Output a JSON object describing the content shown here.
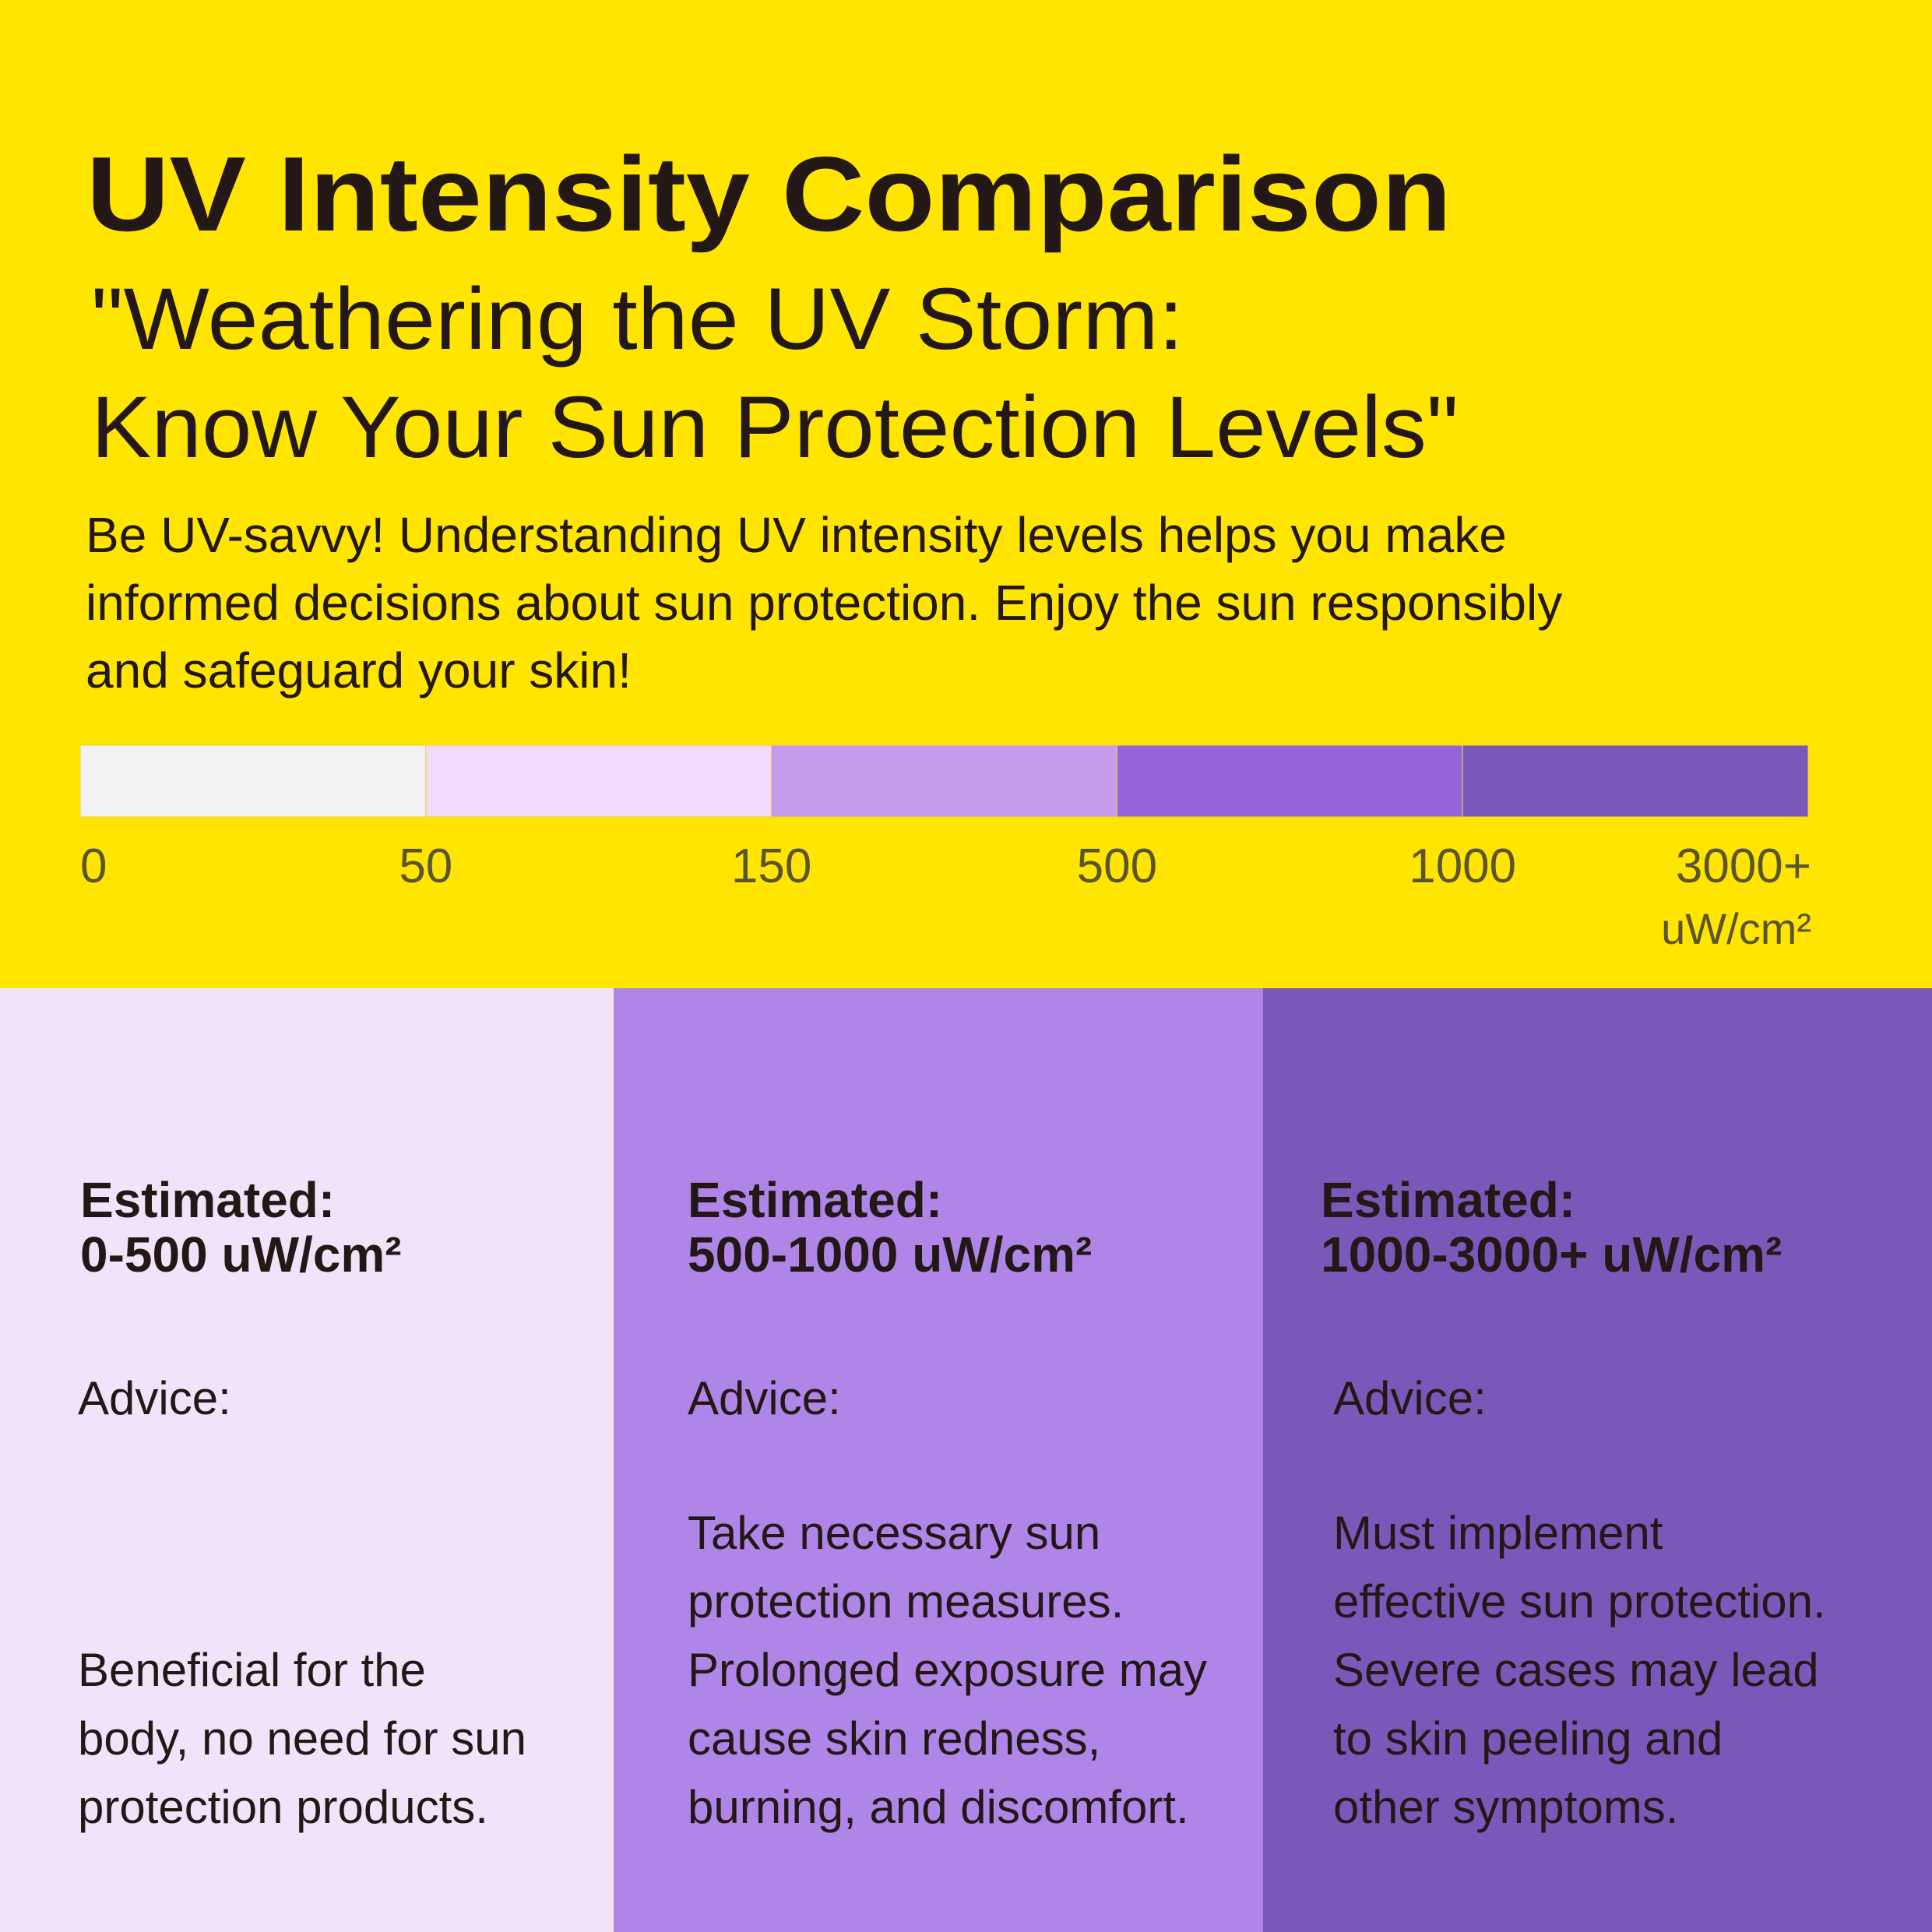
{
  "header": {
    "title": "UV Intensity Comparison",
    "subtitle_lines": [
      "\"Weathering the UV Storm:",
      "Know Your Sun Protection Levels\""
    ],
    "description_lines": [
      "Be UV-savvy! Understanding UV intensity levels helps you make",
      "informed decisions about sun protection. Enjoy the sun responsibly",
      "and safeguard your skin!"
    ]
  },
  "scale": {
    "colors": [
      "#f2f2f4",
      "#f1dafb",
      "#c59beb",
      "#9663d8",
      "#7a58ba"
    ],
    "labels": [
      "0",
      "50",
      "150",
      "500",
      "1000",
      "3000+"
    ],
    "unit": "uW/cm²"
  },
  "panels": [
    {
      "color": "#f1e4fa",
      "estimated_label": "Estimated:",
      "range": "0-500 uW/cm²",
      "advice_label": "Advice:",
      "advice_lines": [
        "Beneficial for the",
        "body, no need for sun",
        "protection products."
      ]
    },
    {
      "color": "#b085e8",
      "estimated_label": "Estimated:",
      "range": "500-1000 uW/cm²",
      "advice_label": "Advice:",
      "advice_lines": [
        "Take necessary sun",
        "protection measures.",
        "Prolonged exposure may",
        "cause skin redness,",
        "burning, and discomfort."
      ]
    },
    {
      "color": "#7a58ba",
      "estimated_label": "Estimated:",
      "range": "1000-3000+ uW/cm²",
      "advice_label": "Advice:",
      "advice_lines": [
        "Must implement",
        "effective sun protection.",
        "Severe cases may lead",
        "to skin peeling and",
        "other symptoms."
      ]
    }
  ]
}
